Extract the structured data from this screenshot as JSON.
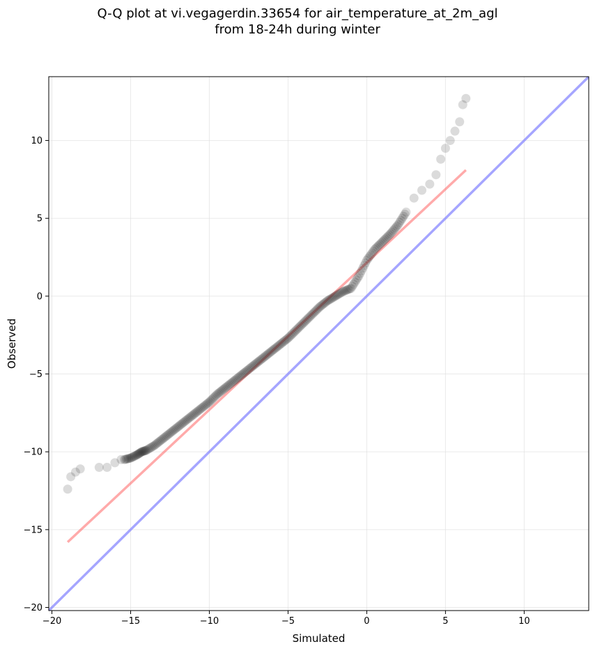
{
  "title_line1": "Q-Q plot at vi.vegagerdin.33654 for air_temperature_at_2m_agl",
  "title_line2": "from 18-24h during winter",
  "chart_data": {
    "type": "scatter",
    "title": "Q-Q plot at vi.vegagerdin.33654 for air_temperature_at_2m_agl from 18-24h during winter",
    "xlabel": "Simulated",
    "ylabel": "Observed",
    "xlim": [
      -20.2,
      14.1
    ],
    "ylim": [
      -20.2,
      14.1
    ],
    "xticks": [
      -20,
      -15,
      -10,
      -5,
      0,
      5,
      10
    ],
    "yticks": [
      -20,
      -15,
      -10,
      -5,
      0,
      5,
      10
    ],
    "grid": true,
    "colors": {
      "points": "#222222",
      "fit_line": "#ff6666",
      "identity_line": "#8888ff"
    },
    "quantiles": {
      "x": [
        -19.0,
        -18.8,
        -18.5,
        -18.2,
        -17.0,
        -16.5,
        -16.0,
        -15.6,
        -15.4,
        -15.0,
        -14.6,
        -14.3,
        -14.0,
        -13.5,
        -13.0,
        -12.5,
        -12.0,
        -11.5,
        -11.0,
        -10.5,
        -10.0,
        -9.5,
        -9.0,
        -8.5,
        -8.0,
        -7.5,
        -7.0,
        -6.5,
        -6.0,
        -5.5,
        -5.0,
        -4.5,
        -4.0,
        -3.5,
        -3.0,
        -2.5,
        -2.0,
        -1.5,
        -1.0,
        -0.5,
        0.0,
        0.5,
        1.0,
        1.5,
        2.0,
        2.5,
        3.0,
        3.5,
        4.0,
        4.4,
        4.7,
        5.0,
        5.3,
        5.6,
        5.9,
        6.1,
        6.3
      ],
      "y": [
        -12.4,
        -11.6,
        -11.3,
        -11.1,
        -11.0,
        -11.0,
        -10.7,
        -10.5,
        -10.5,
        -10.4,
        -10.2,
        -10.0,
        -9.9,
        -9.6,
        -9.2,
        -8.8,
        -8.4,
        -8.0,
        -7.6,
        -7.2,
        -6.8,
        -6.3,
        -5.9,
        -5.5,
        -5.1,
        -4.7,
        -4.3,
        -3.9,
        -3.5,
        -3.1,
        -2.7,
        -2.2,
        -1.7,
        -1.2,
        -0.7,
        -0.3,
        0.0,
        0.3,
        0.5,
        1.3,
        2.3,
        3.0,
        3.5,
        4.0,
        4.6,
        5.4,
        6.3,
        6.8,
        7.2,
        7.8,
        8.8,
        9.5,
        10.0,
        10.6,
        11.2,
        12.3,
        12.7
      ]
    },
    "fit_line": {
      "x": [
        -19.0,
        6.3
      ],
      "y": [
        -15.8,
        8.1
      ]
    },
    "identity_line": {
      "x": [
        -20.2,
        14.1
      ],
      "y": [
        -20.2,
        14.1
      ]
    }
  }
}
